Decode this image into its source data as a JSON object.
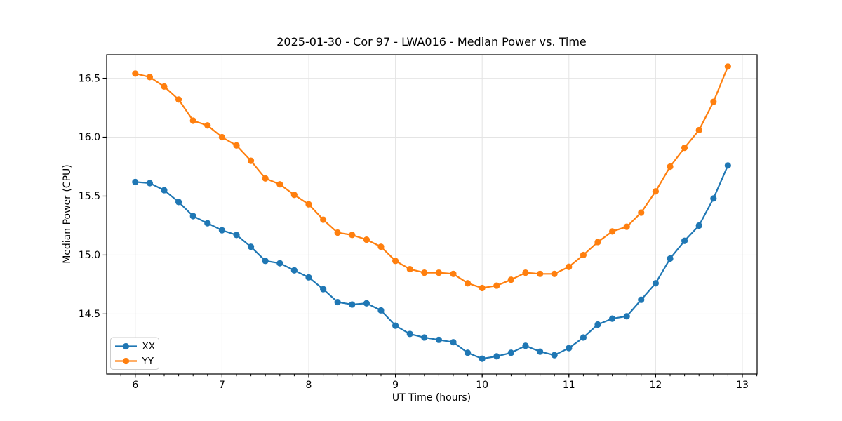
{
  "figure": {
    "background": "#ffffff"
  },
  "chart_data": {
    "type": "line",
    "title": "2025-01-30 - Cor 97 - LWA016 - Median Power vs. Time",
    "xlabel": "UT Time (hours)",
    "ylabel": "Median Power (CPU)",
    "x": [
      6.0,
      6.167,
      6.333,
      6.5,
      6.667,
      6.833,
      7.0,
      7.167,
      7.333,
      7.5,
      7.667,
      7.833,
      8.0,
      8.167,
      8.333,
      8.5,
      8.667,
      8.833,
      9.0,
      9.167,
      9.333,
      9.5,
      9.667,
      9.833,
      10.0,
      10.167,
      10.333,
      10.5,
      10.667,
      10.833,
      11.0,
      11.167,
      11.333,
      11.5,
      11.667,
      11.833,
      12.0,
      12.167,
      12.333,
      12.5,
      12.667,
      12.833
    ],
    "series": [
      {
        "name": "XX",
        "color": "#1f77b4",
        "marker": "circle",
        "values": [
          15.62,
          15.61,
          15.55,
          15.45,
          15.33,
          15.27,
          15.21,
          15.17,
          15.07,
          14.95,
          14.93,
          14.87,
          14.81,
          14.71,
          14.6,
          14.58,
          14.59,
          14.53,
          14.4,
          14.33,
          14.3,
          14.28,
          14.26,
          14.17,
          14.12,
          14.14,
          14.17,
          14.23,
          14.18,
          14.15,
          14.21,
          14.3,
          14.41,
          14.46,
          14.48,
          14.62,
          14.76,
          14.97,
          15.12,
          15.25,
          15.48,
          15.76
        ]
      },
      {
        "name": "YY",
        "color": "#ff7f0e",
        "marker": "circle",
        "values": [
          16.54,
          16.51,
          16.43,
          16.32,
          16.14,
          16.1,
          16.0,
          15.93,
          15.8,
          15.65,
          15.6,
          15.51,
          15.43,
          15.3,
          15.19,
          15.17,
          15.13,
          15.07,
          14.95,
          14.88,
          14.85,
          14.85,
          14.84,
          14.76,
          14.72,
          14.74,
          14.79,
          14.85,
          14.84,
          14.84,
          14.9,
          15.0,
          15.11,
          15.2,
          15.24,
          15.36,
          15.54,
          15.75,
          15.91,
          16.06,
          16.3,
          16.6
        ]
      }
    ],
    "xlim": [
      5.67,
      13.17
    ],
    "ylim": [
      13.99,
      16.7
    ],
    "xticks": [
      6,
      7,
      8,
      9,
      10,
      11,
      12,
      13
    ],
    "xtick_labels": [
      "6",
      "7",
      "8",
      "9",
      "10",
      "11",
      "12",
      "13"
    ],
    "yticks": [
      14.5,
      15.0,
      15.5,
      16.0,
      16.5
    ],
    "ytick_labels": [
      "14.5",
      "15.0",
      "15.5",
      "16.0",
      "16.5"
    ],
    "minor_xtick_step": 0.16667,
    "grid": true,
    "legend": {
      "position": "lower left",
      "entries": [
        "XX",
        "YY"
      ]
    }
  },
  "style": {
    "grid_color": "#e4e4e4",
    "spine_color": "#000000",
    "tick_color": "#000000",
    "text_color": "#000000",
    "legend_border": "#cccccc",
    "legend_background": "#ffffff"
  }
}
